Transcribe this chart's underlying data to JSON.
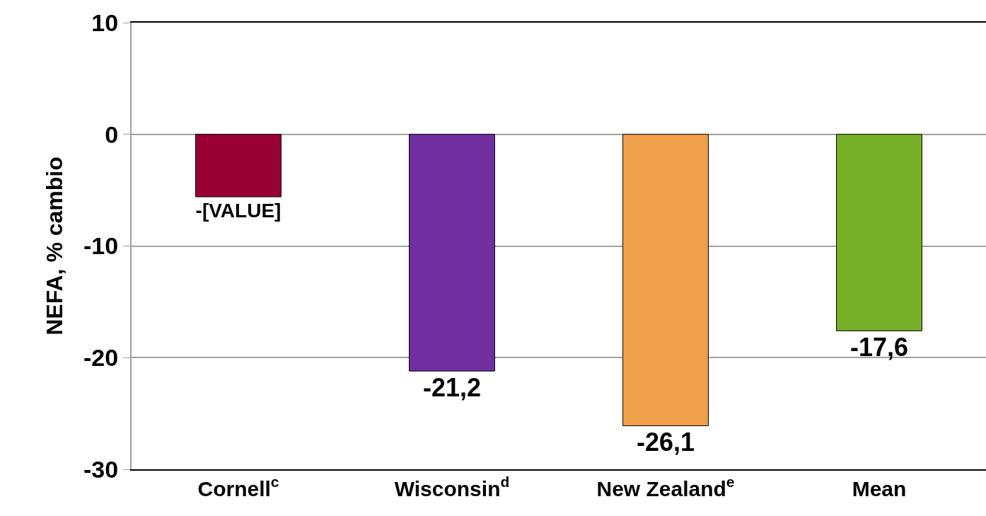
{
  "chart_data": {
    "type": "bar",
    "ylabel": "NEFA, % cambio",
    "categories": [
      "Cornell$^{c}$",
      "Wisconsin$^{d}$",
      "New Zealand$^{e}$",
      "Mean"
    ],
    "values": [
      -5.6,
      -21.2,
      -26.1,
      -17.6
    ],
    "colors": [
      "#990033",
      "#7030a0",
      "#f0a04b",
      "#77b028"
    ],
    "value_labels": [
      "-[VALUE]",
      "-21,2",
      "-26,1",
      "-17,6"
    ],
    "ylim": [
      -30,
      10
    ],
    "yticks": [
      -30,
      -20,
      -10,
      0,
      10
    ],
    "grid": "y"
  }
}
